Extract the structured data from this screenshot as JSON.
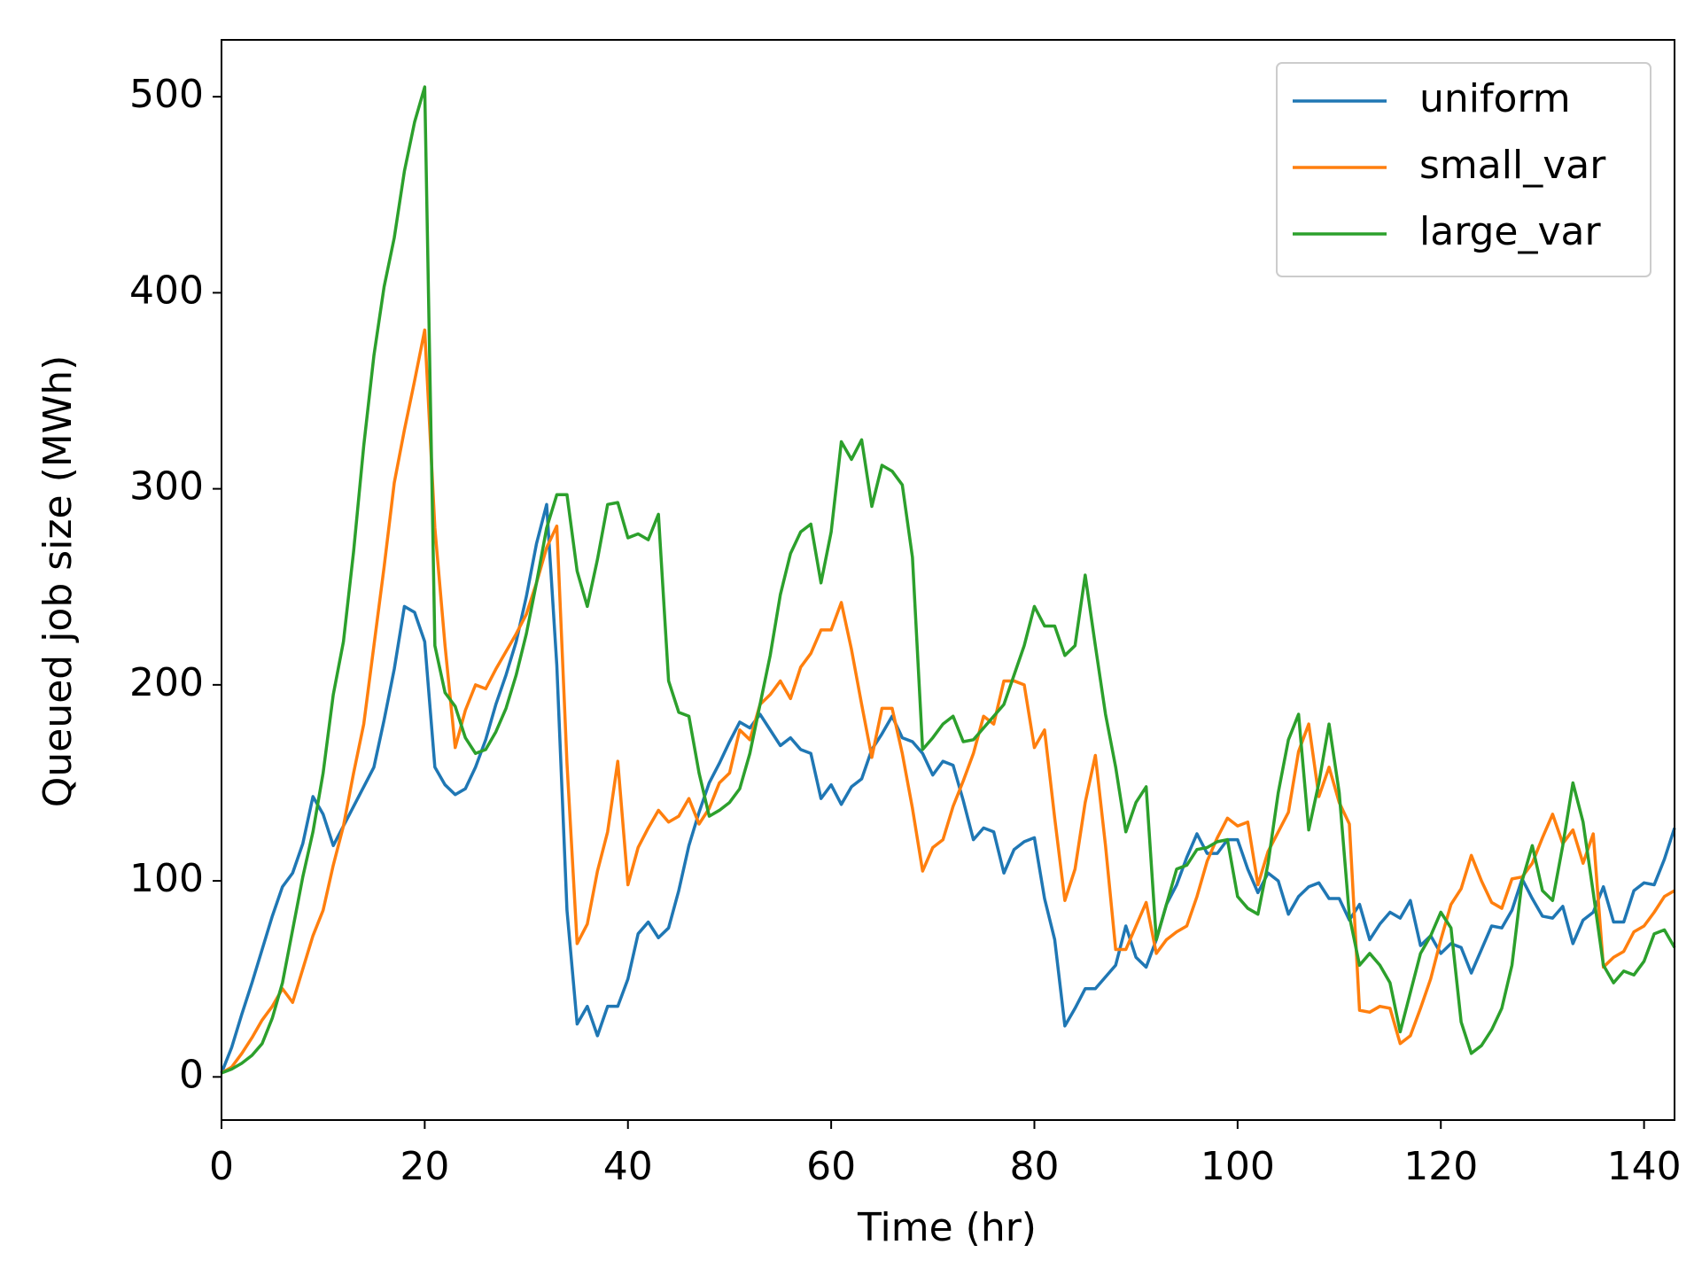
{
  "chart_data": {
    "type": "line",
    "xlabel": "Time (hr)",
    "ylabel": "Queued job size (MWh)",
    "xlim": [
      0,
      143
    ],
    "ylim": [
      -22,
      529
    ],
    "xticks": [
      0,
      20,
      40,
      60,
      80,
      100,
      120,
      140
    ],
    "yticks": [
      0,
      100,
      200,
      300,
      400,
      500
    ],
    "grid": false,
    "legend": "upper right",
    "x": [
      0,
      1,
      2,
      3,
      4,
      5,
      6,
      7,
      8,
      9,
      10,
      11,
      12,
      13,
      14,
      15,
      16,
      17,
      18,
      19,
      20,
      21,
      22,
      23,
      24,
      25,
      26,
      27,
      28,
      29,
      30,
      31,
      32,
      33,
      34,
      35,
      36,
      37,
      38,
      39,
      40,
      41,
      42,
      43,
      44,
      45,
      46,
      47,
      48,
      49,
      50,
      51,
      52,
      53,
      54,
      55,
      56,
      57,
      58,
      59,
      60,
      61,
      62,
      63,
      64,
      65,
      66,
      67,
      68,
      69,
      70,
      71,
      72,
      73,
      74,
      75,
      76,
      77,
      78,
      79,
      80,
      81,
      82,
      83,
      84,
      85,
      86,
      87,
      88,
      89,
      90,
      91,
      92,
      93,
      94,
      95,
      96,
      97,
      98,
      99,
      100,
      101,
      102,
      103,
      104,
      105,
      106,
      107,
      108,
      109,
      110,
      111,
      112,
      113,
      114,
      115,
      116,
      117,
      118,
      119,
      120,
      121,
      122,
      123,
      124,
      125,
      126,
      127,
      128,
      129,
      130,
      131,
      132,
      133,
      134,
      135,
      136,
      137,
      138,
      139,
      140,
      141,
      142,
      143
    ],
    "series": [
      {
        "name": "uniform",
        "color": "#1f77b4",
        "values": [
          2,
          15,
          32,
          48,
          65,
          82,
          97,
          104,
          119,
          143,
          134,
          118,
          128,
          138,
          148,
          158,
          182,
          208,
          240,
          237,
          222,
          158,
          149,
          144,
          147,
          158,
          172,
          190,
          205,
          222,
          245,
          272,
          292,
          210,
          85,
          27,
          36,
          21,
          36,
          36,
          50,
          73,
          79,
          71,
          76,
          95,
          118,
          135,
          150,
          160,
          171,
          181,
          178,
          185,
          177,
          169,
          173,
          167,
          165,
          142,
          149,
          139,
          148,
          152,
          167,
          175,
          184,
          173,
          171,
          165,
          154,
          161,
          159,
          141,
          121,
          127,
          125,
          104,
          116,
          120,
          122,
          91,
          70,
          26,
          35,
          45,
          45,
          51,
          57,
          77,
          61,
          56,
          70,
          88,
          98,
          112,
          124,
          114,
          114,
          121,
          121,
          106,
          94,
          104,
          100,
          83,
          92,
          97,
          99,
          91,
          91,
          80,
          88,
          70,
          78,
          84,
          81,
          90,
          67,
          72,
          63,
          68,
          66,
          53,
          65,
          77,
          76,
          85,
          101,
          91,
          82,
          81,
          87,
          68,
          80,
          84,
          97,
          79,
          79,
          95,
          99,
          98,
          111,
          127
        ]
      },
      {
        "name": "small_var",
        "color": "#ff7f0e",
        "values": [
          2,
          5,
          12,
          20,
          29,
          36,
          45,
          38,
          55,
          72,
          85,
          108,
          128,
          155,
          180,
          220,
          260,
          303,
          330,
          355,
          381,
          280,
          220,
          168,
          187,
          200,
          198,
          208,
          217,
          226,
          236,
          252,
          270,
          281,
          160,
          68,
          78,
          105,
          125,
          161,
          98,
          117,
          127,
          136,
          130,
          133,
          142,
          129,
          137,
          150,
          155,
          177,
          172,
          190,
          195,
          202,
          193,
          209,
          216,
          228,
          228,
          242,
          218,
          190,
          163,
          188,
          188,
          165,
          137,
          105,
          117,
          121,
          138,
          151,
          165,
          184,
          180,
          202,
          202,
          200,
          168,
          177,
          132,
          90,
          106,
          140,
          164,
          118,
          65,
          65,
          77,
          89,
          63,
          70,
          74,
          77,
          92,
          110,
          122,
          132,
          128,
          130,
          98,
          115,
          125,
          135,
          166,
          180,
          143,
          158,
          140,
          129,
          34,
          33,
          36,
          35,
          17,
          21,
          35,
          50,
          70,
          88,
          96,
          113,
          100,
          89,
          86,
          101,
          102,
          109,
          122,
          134,
          119,
          126,
          109,
          124,
          56,
          61,
          64,
          74,
          77,
          84,
          92,
          95
        ]
      },
      {
        "name": "large_var",
        "color": "#2ca02c",
        "values": [
          2,
          4,
          7,
          11,
          17,
          30,
          48,
          75,
          102,
          125,
          155,
          195,
          222,
          268,
          322,
          368,
          403,
          428,
          462,
          487,
          505,
          220,
          196,
          189,
          173,
          165,
          167,
          176,
          188,
          205,
          226,
          252,
          280,
          297,
          297,
          258,
          240,
          264,
          292,
          293,
          275,
          277,
          274,
          287,
          202,
          186,
          184,
          155,
          133,
          136,
          140,
          147,
          165,
          190,
          215,
          246,
          267,
          278,
          282,
          252,
          278,
          324,
          315,
          325,
          291,
          312,
          309,
          302,
          265,
          167,
          173,
          180,
          184,
          171,
          172,
          178,
          184,
          190,
          205,
          220,
          240,
          230,
          230,
          215,
          220,
          256,
          220,
          185,
          158,
          125,
          140,
          148,
          70,
          88,
          106,
          108,
          116,
          117,
          120,
          121,
          92,
          86,
          83,
          109,
          145,
          172,
          185,
          126,
          150,
          180,
          145,
          82,
          57,
          63,
          57,
          48,
          23,
          43,
          63,
          72,
          84,
          76,
          28,
          12,
          16,
          24,
          35,
          57,
          100,
          118,
          95,
          90,
          118,
          150,
          130,
          94,
          57,
          48,
          54,
          52,
          59,
          73,
          75,
          66
        ]
      }
    ]
  }
}
